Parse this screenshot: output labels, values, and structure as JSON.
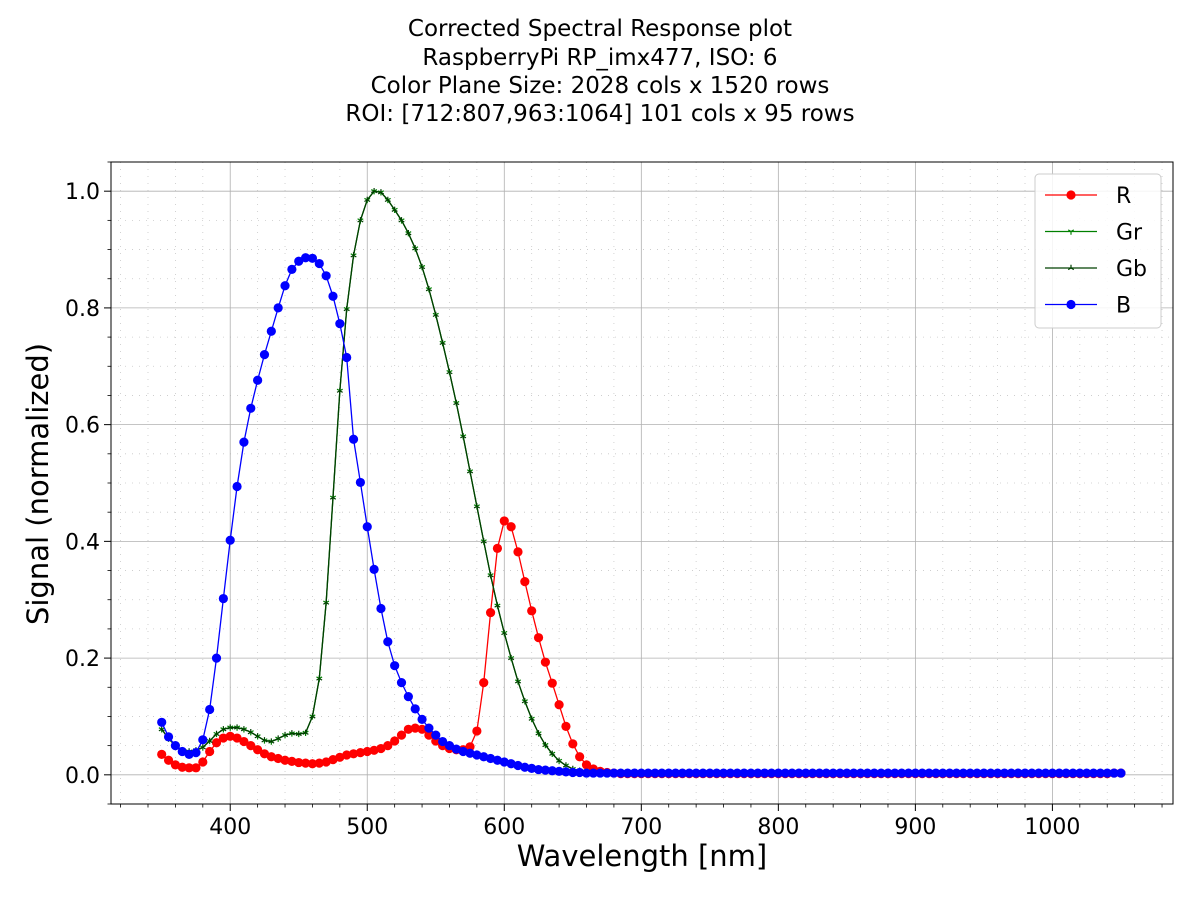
{
  "chart_data": {
    "type": "line",
    "title_lines": [
      "Corrected Spectral Response plot",
      "RaspberryPi RP_imx477, ISO: 6",
      "Color Plane Size: 2028 cols x 1520 rows",
      "ROI: [712:807,963:1064] 101 cols x 95 rows"
    ],
    "xlabel": "Wavelength [nm]",
    "ylabel": "Signal (normalized)",
    "xlim": [
      313,
      1088
    ],
    "ylim": [
      -0.05,
      1.05
    ],
    "xticks": [
      400,
      500,
      600,
      700,
      800,
      900,
      1000
    ],
    "xtick_labels": [
      "400",
      "500",
      "600",
      "700",
      "800",
      "900",
      "1000"
    ],
    "yticks": [
      0.0,
      0.2,
      0.4,
      0.6,
      0.8,
      1.0
    ],
    "ytick_labels": [
      "0.0",
      "0.2",
      "0.4",
      "0.6",
      "0.8",
      "1.0"
    ],
    "grid": true,
    "minor_grid": "dotted",
    "legend_position": "top-right",
    "x_step": 5,
    "series": [
      {
        "name": "R",
        "color": "#ff0000",
        "marker": "circle",
        "x_start": 350,
        "x_end": 1050,
        "values": [
          0.035,
          0.025,
          0.017,
          0.013,
          0.012,
          0.012,
          0.022,
          0.04,
          0.055,
          0.063,
          0.066,
          0.063,
          0.057,
          0.05,
          0.043,
          0.036,
          0.031,
          0.028,
          0.025,
          0.023,
          0.021,
          0.02,
          0.019,
          0.02,
          0.022,
          0.026,
          0.03,
          0.034,
          0.036,
          0.038,
          0.04,
          0.042,
          0.045,
          0.05,
          0.058,
          0.068,
          0.078,
          0.08,
          0.078,
          0.068,
          0.058,
          0.05,
          0.045,
          0.043,
          0.043,
          0.048,
          0.075,
          0.158,
          0.278,
          0.388,
          0.435,
          0.425,
          0.382,
          0.331,
          0.281,
          0.235,
          0.193,
          0.157,
          0.12,
          0.083,
          0.053,
          0.031,
          0.017,
          0.01,
          0.006,
          0.004,
          0.003,
          0.002,
          0.002,
          0.002,
          0.002,
          0.002,
          0.002,
          0.002,
          0.002,
          0.002,
          0.002,
          0.002,
          0.002,
          0.002,
          0.002,
          0.002,
          0.002,
          0.002,
          0.002,
          0.002,
          0.002,
          0.002,
          0.002,
          0.002,
          0.002,
          0.002,
          0.002,
          0.002,
          0.002,
          0.002,
          0.002,
          0.002,
          0.002,
          0.002,
          0.002,
          0.002,
          0.002,
          0.002,
          0.002,
          0.002,
          0.002,
          0.002,
          0.002,
          0.002,
          0.002,
          0.002,
          0.002,
          0.002,
          0.002,
          0.002,
          0.002,
          0.002,
          0.002,
          0.002,
          0.002,
          0.002,
          0.002,
          0.002,
          0.002,
          0.002,
          0.002,
          0.002,
          0.002,
          0.002,
          0.002,
          0.002,
          0.002,
          0.002,
          0.002,
          0.002,
          0.002,
          0.002,
          0.002,
          0.003,
          0.003
        ]
      },
      {
        "name": "Gr",
        "color": "#008000",
        "marker": "tri_down",
        "x_start": 350,
        "x_end": 1050,
        "values": [
          0.078,
          0.062,
          0.05,
          0.042,
          0.04,
          0.042,
          0.047,
          0.058,
          0.07,
          0.078,
          0.081,
          0.081,
          0.078,
          0.073,
          0.066,
          0.059,
          0.057,
          0.062,
          0.068,
          0.071,
          0.07,
          0.072,
          0.1,
          0.165,
          0.295,
          0.475,
          0.658,
          0.798,
          0.89,
          0.95,
          0.985,
          1.0,
          0.998,
          0.985,
          0.968,
          0.95,
          0.928,
          0.902,
          0.87,
          0.832,
          0.788,
          0.74,
          0.69,
          0.637,
          0.58,
          0.52,
          0.46,
          0.4,
          0.342,
          0.29,
          0.243,
          0.2,
          0.16,
          0.126,
          0.096,
          0.071,
          0.051,
          0.036,
          0.024,
          0.016,
          0.01,
          0.007,
          0.005,
          0.004,
          0.003,
          0.003,
          0.003,
          0.003,
          0.003,
          0.003,
          0.003,
          0.003,
          0.003,
          0.003,
          0.003,
          0.003,
          0.003,
          0.003,
          0.003,
          0.003,
          0.003,
          0.003,
          0.003,
          0.003,
          0.003,
          0.003,
          0.003,
          0.003,
          0.003,
          0.003,
          0.003,
          0.003,
          0.003,
          0.003,
          0.003,
          0.003,
          0.003,
          0.003,
          0.003,
          0.003,
          0.003,
          0.003,
          0.003,
          0.003,
          0.003,
          0.003,
          0.003,
          0.003,
          0.003,
          0.003,
          0.003,
          0.003,
          0.003,
          0.003,
          0.003,
          0.003,
          0.003,
          0.003,
          0.003,
          0.003,
          0.003,
          0.003,
          0.003,
          0.003,
          0.003,
          0.003,
          0.003,
          0.003,
          0.003,
          0.003,
          0.003,
          0.003,
          0.003,
          0.003,
          0.003,
          0.003,
          0.003,
          0.003,
          0.003,
          0.003,
          0.003
        ]
      },
      {
        "name": "Gb",
        "color": "#004000",
        "marker": "tri_up",
        "x_start": 350,
        "x_end": 1050,
        "values": [
          0.078,
          0.062,
          0.05,
          0.042,
          0.04,
          0.042,
          0.047,
          0.058,
          0.07,
          0.078,
          0.081,
          0.081,
          0.078,
          0.073,
          0.066,
          0.059,
          0.057,
          0.062,
          0.068,
          0.071,
          0.07,
          0.072,
          0.1,
          0.165,
          0.295,
          0.475,
          0.658,
          0.798,
          0.89,
          0.95,
          0.985,
          1.0,
          0.998,
          0.985,
          0.968,
          0.95,
          0.928,
          0.902,
          0.87,
          0.832,
          0.788,
          0.74,
          0.69,
          0.637,
          0.58,
          0.52,
          0.46,
          0.4,
          0.342,
          0.29,
          0.243,
          0.2,
          0.16,
          0.126,
          0.096,
          0.071,
          0.051,
          0.036,
          0.024,
          0.016,
          0.01,
          0.007,
          0.005,
          0.004,
          0.003,
          0.003,
          0.003,
          0.003,
          0.003,
          0.003,
          0.003,
          0.003,
          0.003,
          0.003,
          0.003,
          0.003,
          0.003,
          0.003,
          0.003,
          0.003,
          0.003,
          0.003,
          0.003,
          0.003,
          0.003,
          0.003,
          0.003,
          0.003,
          0.003,
          0.003,
          0.003,
          0.003,
          0.003,
          0.003,
          0.003,
          0.003,
          0.003,
          0.003,
          0.003,
          0.003,
          0.003,
          0.003,
          0.003,
          0.003,
          0.003,
          0.003,
          0.003,
          0.003,
          0.003,
          0.003,
          0.003,
          0.003,
          0.003,
          0.003,
          0.003,
          0.003,
          0.003,
          0.003,
          0.003,
          0.003,
          0.003,
          0.003,
          0.003,
          0.003,
          0.003,
          0.003,
          0.003,
          0.003,
          0.003,
          0.003,
          0.003,
          0.003,
          0.003,
          0.003,
          0.003,
          0.003,
          0.003,
          0.003,
          0.003,
          0.003,
          0.003
        ]
      },
      {
        "name": "B",
        "color": "#0000ff",
        "marker": "circle",
        "x_start": 350,
        "x_end": 1050,
        "values": [
          0.09,
          0.065,
          0.05,
          0.04,
          0.035,
          0.038,
          0.06,
          0.112,
          0.2,
          0.302,
          0.402,
          0.494,
          0.57,
          0.628,
          0.676,
          0.72,
          0.76,
          0.8,
          0.838,
          0.866,
          0.88,
          0.886,
          0.885,
          0.876,
          0.855,
          0.82,
          0.773,
          0.715,
          0.575,
          0.501,
          0.425,
          0.352,
          0.285,
          0.228,
          0.187,
          0.158,
          0.134,
          0.113,
          0.095,
          0.08,
          0.068,
          0.057,
          0.05,
          0.044,
          0.04,
          0.037,
          0.034,
          0.031,
          0.028,
          0.025,
          0.022,
          0.019,
          0.016,
          0.013,
          0.011,
          0.009,
          0.008,
          0.007,
          0.006,
          0.005,
          0.004,
          0.004,
          0.003,
          0.003,
          0.003,
          0.003,
          0.003,
          0.003,
          0.003,
          0.003,
          0.003,
          0.003,
          0.003,
          0.003,
          0.003,
          0.003,
          0.003,
          0.003,
          0.003,
          0.003,
          0.003,
          0.003,
          0.003,
          0.003,
          0.003,
          0.003,
          0.003,
          0.003,
          0.003,
          0.003,
          0.003,
          0.003,
          0.003,
          0.003,
          0.003,
          0.003,
          0.003,
          0.003,
          0.003,
          0.003,
          0.003,
          0.003,
          0.003,
          0.003,
          0.003,
          0.003,
          0.003,
          0.003,
          0.003,
          0.003,
          0.003,
          0.003,
          0.003,
          0.003,
          0.003,
          0.003,
          0.003,
          0.003,
          0.003,
          0.003,
          0.003,
          0.003,
          0.003,
          0.003,
          0.003,
          0.003,
          0.003,
          0.003,
          0.003,
          0.003,
          0.003,
          0.003,
          0.003,
          0.003,
          0.003,
          0.003,
          0.003,
          0.003,
          0.003,
          0.003,
          0.003
        ]
      }
    ]
  }
}
